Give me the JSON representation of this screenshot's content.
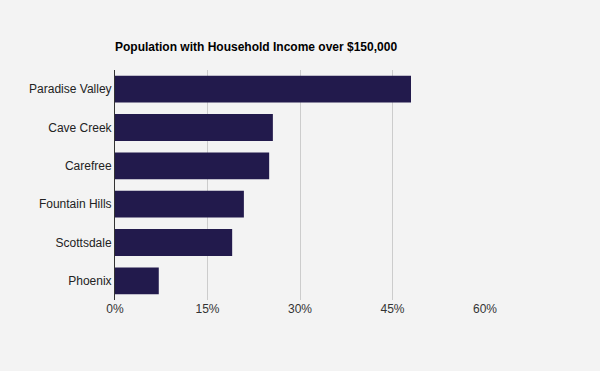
{
  "chart_data": {
    "type": "bar",
    "orientation": "horizontal",
    "title": "Population with Household Income over $150,000",
    "categories": [
      "Paradise Valley",
      "Cave Creek",
      "Carefree",
      "Fountain Hills",
      "Scottsdale",
      "Phoenix"
    ],
    "values": [
      48.0,
      25.6,
      25.0,
      20.9,
      19.0,
      7.1
    ],
    "color": "#221a4c",
    "xlim": [
      0,
      60
    ],
    "xticks": [
      {
        "value": 0,
        "label": "0%"
      },
      {
        "value": 15,
        "label": "15%"
      },
      {
        "value": 30,
        "label": "30%"
      },
      {
        "value": 45,
        "label": "45%"
      },
      {
        "value": 60,
        "label": "60%"
      }
    ],
    "grid": true
  }
}
